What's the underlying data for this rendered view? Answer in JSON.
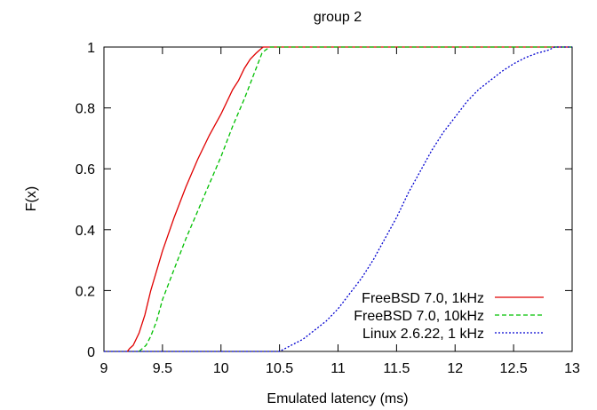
{
  "chart_data": {
    "type": "line",
    "title": "group 2",
    "xlabel": "Emulated latency (ms)",
    "ylabel": "F(x)",
    "xlim": [
      9,
      13
    ],
    "ylim": [
      0,
      1
    ],
    "xticks": [
      9,
      9.5,
      10,
      10.5,
      11,
      11.5,
      12,
      12.5,
      13
    ],
    "yticks": [
      0,
      0.2,
      0.4,
      0.6,
      0.8,
      1
    ],
    "xtick_labels": [
      "9",
      "9.5",
      "10",
      "10.5",
      "11",
      "11.5",
      "12",
      "12.5",
      "13"
    ],
    "ytick_labels": [
      "0",
      "0.2",
      "0.4",
      "0.6",
      "0.8",
      "1"
    ],
    "grid": false,
    "legend_position": "bottom-right",
    "series": [
      {
        "name": "FreeBSD 7.0, 1kHz",
        "color": "#e00000",
        "dash": "solid",
        "x": [
          9.2,
          9.22,
          9.25,
          9.3,
          9.35,
          9.4,
          9.5,
          9.6,
          9.7,
          9.8,
          9.9,
          10.0,
          10.1,
          10.15,
          10.2,
          10.25,
          10.3,
          10.33,
          10.36,
          10.4,
          13.0
        ],
        "y": [
          0.0,
          0.01,
          0.02,
          0.06,
          0.12,
          0.2,
          0.33,
          0.44,
          0.54,
          0.63,
          0.71,
          0.78,
          0.86,
          0.89,
          0.93,
          0.96,
          0.98,
          0.99,
          1.0,
          1.0,
          1.0
        ]
      },
      {
        "name": "FreeBSD 7.0, 10kHz",
        "color": "#00c000",
        "dash": "dashed",
        "x": [
          9.3,
          9.33,
          9.36,
          9.4,
          9.45,
          9.5,
          9.6,
          9.7,
          9.8,
          9.9,
          10.0,
          10.1,
          10.2,
          10.25,
          10.3,
          10.35,
          10.38,
          10.42,
          13.0
        ],
        "y": [
          0.0,
          0.01,
          0.02,
          0.05,
          0.1,
          0.17,
          0.27,
          0.37,
          0.46,
          0.55,
          0.64,
          0.74,
          0.83,
          0.88,
          0.93,
          0.98,
          0.99,
          1.0,
          1.0
        ]
      },
      {
        "name": "Linux 2.6.22, 1 kHz",
        "color": "#0000d0",
        "dash": "dotted",
        "x": [
          9.0,
          10.5,
          10.55,
          10.6,
          10.7,
          10.8,
          10.9,
          11.0,
          11.1,
          11.2,
          11.3,
          11.4,
          11.5,
          11.6,
          11.7,
          11.8,
          11.9,
          12.0,
          12.1,
          12.2,
          12.3,
          12.4,
          12.5,
          12.6,
          12.7,
          12.8,
          12.85,
          13.0
        ],
        "y": [
          0.0,
          0.0,
          0.01,
          0.02,
          0.04,
          0.07,
          0.1,
          0.14,
          0.19,
          0.24,
          0.3,
          0.37,
          0.44,
          0.52,
          0.59,
          0.66,
          0.72,
          0.77,
          0.82,
          0.86,
          0.89,
          0.92,
          0.945,
          0.965,
          0.98,
          0.99,
          1.0,
          1.0
        ]
      }
    ]
  }
}
